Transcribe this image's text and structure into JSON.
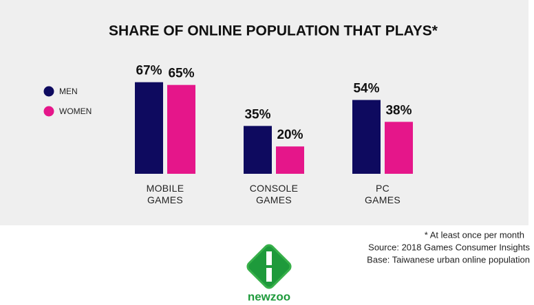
{
  "chart_data": {
    "type": "bar",
    "title": "SHARE OF ONLINE POPULATION THAT PLAYS*",
    "categories": [
      "MOBILE GAMES",
      "CONSOLE GAMES",
      "PC GAMES"
    ],
    "series": [
      {
        "name": "MEN",
        "color": "#0e0a5f",
        "values": [
          67,
          35,
          54
        ],
        "value_labels": [
          "67%",
          "35%",
          "54%"
        ]
      },
      {
        "name": "WOMEN",
        "color": "#e5168a",
        "values": [
          65,
          20,
          38
        ],
        "value_labels": [
          "65%",
          "20%",
          "38%"
        ]
      }
    ],
    "legend": "left",
    "notes": [
      "* At least once per month",
      "Source: 2018 Games Consumer Insights",
      "Base: Taiwanese urban online population"
    ]
  },
  "logo": "newzoo"
}
